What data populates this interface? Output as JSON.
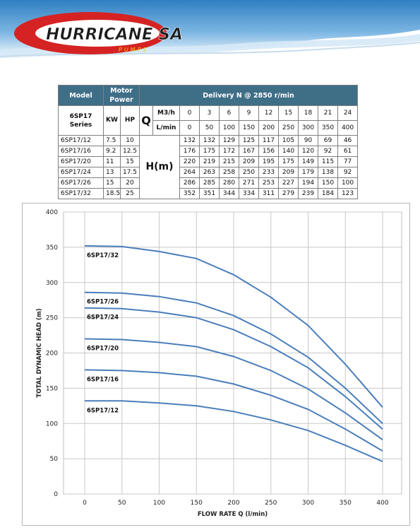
{
  "brand": {
    "logo_text": "HURRICANE SA",
    "logo_sub": "PUMPS"
  },
  "table": {
    "model_label": "Model",
    "motor_label": "Motor Power",
    "delivery_label": "Delivery N @ 2850 r/min",
    "series_label_1": "6SP17",
    "series_label_2": "Series",
    "kw_label": "KW",
    "hp_label": "HP",
    "q_label": "Q",
    "m3h_label": "M3/h",
    "lmin_label": "L/min",
    "h_label": "H(m)",
    "m3h": [
      "0",
      "3",
      "6",
      "9",
      "12",
      "15",
      "18",
      "21",
      "24"
    ],
    "lmin": [
      "0",
      "50",
      "100",
      "150",
      "200",
      "250",
      "300",
      "350",
      "400"
    ],
    "rows": [
      {
        "model": "6SP17/12",
        "kw": "7.5",
        "hp": "10",
        "h": [
          "132",
          "132",
          "129",
          "125",
          "117",
          "105",
          "90",
          "69",
          "46"
        ]
      },
      {
        "model": "6SP17/16",
        "kw": "9.2",
        "hp": "12.5",
        "h": [
          "176",
          "175",
          "172",
          "167",
          "156",
          "140",
          "120",
          "92",
          "61"
        ]
      },
      {
        "model": "6SP17/20",
        "kw": "11",
        "hp": "15",
        "h": [
          "220",
          "219",
          "215",
          "209",
          "195",
          "175",
          "149",
          "115",
          "77"
        ]
      },
      {
        "model": "6SP17/24",
        "kw": "13",
        "hp": "17.5",
        "h": [
          "264",
          "263",
          "258",
          "250",
          "233",
          "209",
          "179",
          "138",
          "92"
        ]
      },
      {
        "model": "6SP17/26",
        "kw": "15",
        "hp": "20",
        "h": [
          "286",
          "285",
          "280",
          "271",
          "253",
          "227",
          "194",
          "150",
          "100"
        ]
      },
      {
        "model": "6SP17/32",
        "kw": "18.5",
        "hp": "25",
        "h": [
          "352",
          "351",
          "344",
          "334",
          "311",
          "279",
          "239",
          "184",
          "123"
        ]
      }
    ]
  },
  "chart_data": {
    "type": "line",
    "xlabel": "FLOW RATE Q (l/min)",
    "ylabel": "TOTAL DYNAMIC HEAD (m)",
    "xlim": [
      0,
      400
    ],
    "ylim": [
      0,
      400
    ],
    "x": [
      0,
      50,
      100,
      150,
      200,
      250,
      300,
      350,
      400
    ],
    "xticks": [
      "0",
      "50",
      "100",
      "150",
      "200",
      "250",
      "300",
      "350",
      "400"
    ],
    "yticks": [
      "0",
      "50",
      "100",
      "150",
      "200",
      "250",
      "300",
      "350",
      "400"
    ],
    "grid": true,
    "line_color": "#4a7ebb",
    "series": [
      {
        "name": "6SP17/12",
        "values": [
          132,
          132,
          129,
          125,
          117,
          105,
          90,
          69,
          46
        ]
      },
      {
        "name": "6SP17/16",
        "values": [
          176,
          175,
          172,
          167,
          156,
          140,
          120,
          92,
          61
        ]
      },
      {
        "name": "6SP17/20",
        "values": [
          220,
          219,
          215,
          209,
          195,
          175,
          149,
          115,
          77
        ]
      },
      {
        "name": "6SP17/24",
        "values": [
          264,
          263,
          258,
          250,
          233,
          209,
          179,
          138,
          92
        ]
      },
      {
        "name": "6SP17/26",
        "values": [
          286,
          285,
          280,
          271,
          253,
          227,
          194,
          150,
          100
        ]
      },
      {
        "name": "6SP17/32",
        "values": [
          352,
          351,
          344,
          334,
          311,
          279,
          239,
          184,
          123
        ]
      }
    ]
  }
}
